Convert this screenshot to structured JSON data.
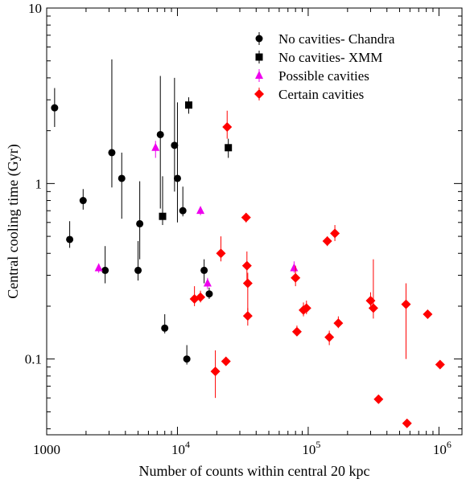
{
  "chart_data": {
    "type": "scatter",
    "xlabel": "Number of counts within central 20 kpc",
    "ylabel": "Central cooling time (Gyr)",
    "xscale": "log",
    "yscale": "log",
    "xlim": [
      1000,
      1500000
    ],
    "ylim": [
      0.037,
      10
    ],
    "grid": false,
    "legend_position": "top-right",
    "x_ticks": [
      {
        "value": 1000,
        "label": "1000"
      },
      {
        "value": 10000,
        "label": "10",
        "exp": "4"
      },
      {
        "value": 100000,
        "label": "10",
        "exp": "5"
      },
      {
        "value": 1000000,
        "label": "10",
        "exp": "6"
      }
    ],
    "y_ticks": [
      {
        "value": 0.1,
        "label": "0.1"
      },
      {
        "value": 1,
        "label": "1"
      },
      {
        "value": 10,
        "label": "10"
      }
    ],
    "series": [
      {
        "name": "No cavities- Chandra",
        "marker": "circle",
        "color": "#000000",
        "points": [
          {
            "x": 1150,
            "y": 2.7,
            "lo": 2.1,
            "hi": 3.5
          },
          {
            "x": 1500,
            "y": 0.48,
            "lo": 0.43,
            "hi": 0.61
          },
          {
            "x": 1900,
            "y": 0.8,
            "lo": 0.71,
            "hi": 0.93
          },
          {
            "x": 2800,
            "y": 0.32,
            "lo": 0.27,
            "hi": 0.44
          },
          {
            "x": 3150,
            "y": 1.5,
            "lo": 0.95,
            "hi": 5.1
          },
          {
            "x": 3750,
            "y": 1.07,
            "lo": 0.63,
            "hi": 1.5
          },
          {
            "x": 5000,
            "y": 0.32,
            "lo": 0.28,
            "hi": 0.47
          },
          {
            "x": 5150,
            "y": 0.59,
            "lo": 0.37,
            "hi": 1.03
          },
          {
            "x": 7400,
            "y": 1.9,
            "lo": 0.72,
            "hi": 4.1
          },
          {
            "x": 8000,
            "y": 0.15,
            "lo": 0.14,
            "hi": 0.18
          },
          {
            "x": 9500,
            "y": 1.65,
            "lo": 0.9,
            "hi": 4.0
          },
          {
            "x": 10000,
            "y": 1.07,
            "lo": 0.6,
            "hi": 2.9
          },
          {
            "x": 11000,
            "y": 0.7,
            "lo": 0.65,
            "hi": 0.96
          },
          {
            "x": 11800,
            "y": 0.1,
            "lo": 0.093,
            "hi": 0.12
          },
          {
            "x": 16000,
            "y": 0.32,
            "lo": 0.27,
            "hi": 0.37
          },
          {
            "x": 17500,
            "y": 0.235,
            "lo": 0.22,
            "hi": 0.255
          }
        ]
      },
      {
        "name": "No cavities- XMM",
        "marker": "square",
        "color": "#000000",
        "points": [
          {
            "x": 7700,
            "y": 0.65,
            "lo": 0.58,
            "hi": 1.1
          },
          {
            "x": 12200,
            "y": 2.8,
            "lo": 2.5,
            "hi": 3.1
          },
          {
            "x": 24500,
            "y": 1.6,
            "lo": 1.4,
            "hi": 1.8
          }
        ]
      },
      {
        "name": "Possible cavities",
        "marker": "triangle",
        "color": "#ee00ee",
        "points": [
          {
            "x": 2500,
            "y": 0.33,
            "lo": 0.31,
            "hi": 0.35
          },
          {
            "x": 6800,
            "y": 1.6,
            "lo": 1.4,
            "hi": 1.75
          },
          {
            "x": 15000,
            "y": 0.7,
            "lo": 0.66,
            "hi": 0.74
          },
          {
            "x": 17000,
            "y": 0.27,
            "lo": 0.25,
            "hi": 0.29
          },
          {
            "x": 78000,
            "y": 0.33,
            "lo": 0.31,
            "hi": 0.36
          }
        ]
      },
      {
        "name": "Certain cavities",
        "marker": "diamond",
        "color": "#ff0000",
        "points": [
          {
            "x": 13500,
            "y": 0.22,
            "lo": 0.2,
            "hi": 0.26
          },
          {
            "x": 15000,
            "y": 0.225,
            "lo": 0.21,
            "hi": 0.245
          },
          {
            "x": 19500,
            "y": 0.085,
            "lo": 0.06,
            "hi": 0.112
          },
          {
            "x": 21500,
            "y": 0.4,
            "lo": 0.36,
            "hi": 0.5
          },
          {
            "x": 23500,
            "y": 0.097,
            "lo": 0.092,
            "hi": 0.103
          },
          {
            "x": 24000,
            "y": 2.1,
            "lo": 1.8,
            "hi": 2.6
          },
          {
            "x": 33500,
            "y": 0.64,
            "lo": 0.6,
            "hi": 0.68
          },
          {
            "x": 34000,
            "y": 0.34,
            "lo": 0.26,
            "hi": 0.41
          },
          {
            "x": 34500,
            "y": 0.27,
            "lo": 0.18,
            "hi": 0.31
          },
          {
            "x": 34500,
            "y": 0.176,
            "lo": 0.155,
            "hi": 0.195
          },
          {
            "x": 80000,
            "y": 0.29,
            "lo": 0.26,
            "hi": 0.34
          },
          {
            "x": 82000,
            "y": 0.143,
            "lo": 0.135,
            "hi": 0.155
          },
          {
            "x": 92000,
            "y": 0.19,
            "lo": 0.175,
            "hi": 0.21
          },
          {
            "x": 97000,
            "y": 0.195,
            "lo": 0.18,
            "hi": 0.215
          },
          {
            "x": 140000,
            "y": 0.47,
            "lo": 0.44,
            "hi": 0.5
          },
          {
            "x": 145000,
            "y": 0.133,
            "lo": 0.12,
            "hi": 0.145
          },
          {
            "x": 160000,
            "y": 0.52,
            "lo": 0.47,
            "hi": 0.58
          },
          {
            "x": 170000,
            "y": 0.16,
            "lo": 0.15,
            "hi": 0.175
          },
          {
            "x": 300000,
            "y": 0.215,
            "lo": 0.2,
            "hi": 0.24
          },
          {
            "x": 315000,
            "y": 0.195,
            "lo": 0.17,
            "hi": 0.37
          },
          {
            "x": 345000,
            "y": 0.059,
            "lo": 0.056,
            "hi": 0.062
          },
          {
            "x": 560000,
            "y": 0.205,
            "lo": 0.1,
            "hi": 0.27
          },
          {
            "x": 570000,
            "y": 0.043,
            "lo": 0.041,
            "hi": 0.045
          },
          {
            "x": 820000,
            "y": 0.18,
            "lo": 0.17,
            "hi": 0.19
          },
          {
            "x": 1020000,
            "y": 0.093,
            "lo": 0.088,
            "hi": 0.098
          }
        ]
      }
    ]
  }
}
